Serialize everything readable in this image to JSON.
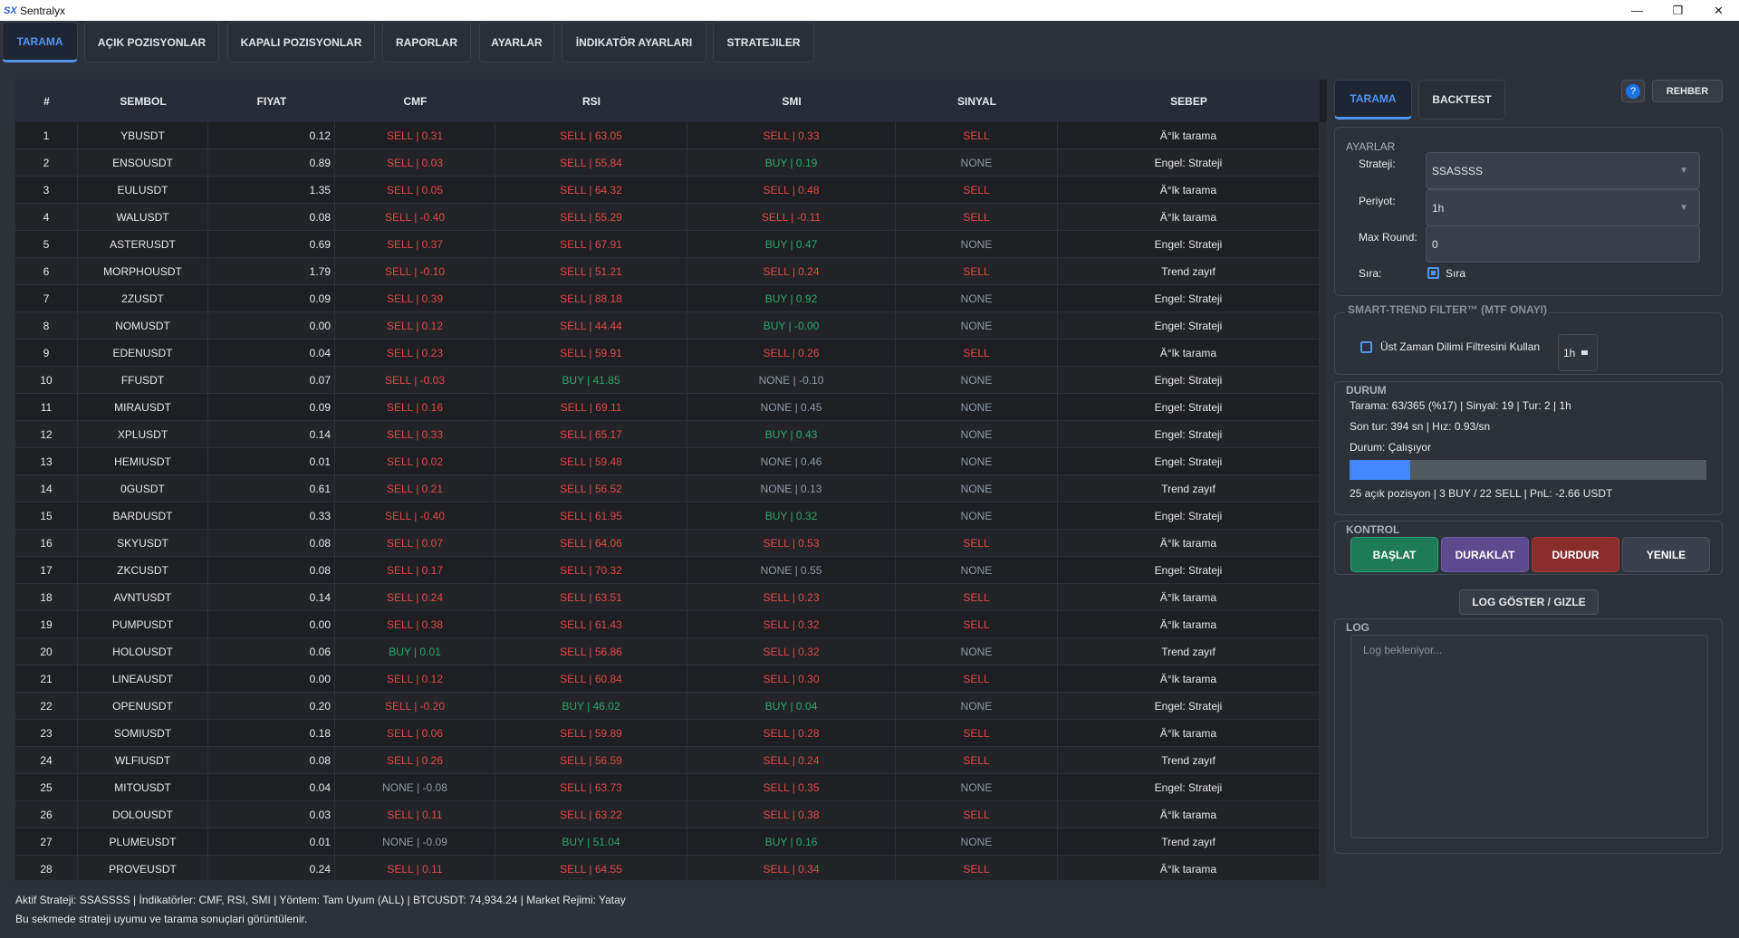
{
  "window": {
    "title": "Sentralyx",
    "logo": "SX",
    "minimize": "—",
    "restore": "❐",
    "close": "✕"
  },
  "tabs": [
    {
      "label": "TARAMA",
      "active": true
    },
    {
      "label": "AÇIK POZISYONLAR"
    },
    {
      "label": "KAPALI POZISYONLAR"
    },
    {
      "label": "RAPORLAR"
    },
    {
      "label": "AYARLAR"
    },
    {
      "label": "İNDIKATÖR AYARLARI"
    },
    {
      "label": "STRATEJILER"
    }
  ],
  "table": {
    "columns": [
      "#",
      "SEMBOL",
      "FIYAT",
      "CMF",
      "RSI",
      "SMI",
      "SINYAL",
      "SEBEP"
    ],
    "rows": [
      [
        "1",
        "YBUSDT",
        "0.12",
        "SELL | 0.31",
        "SELL | 63.05",
        "SELL | 0.33",
        "SELL",
        "Ä°lk tarama"
      ],
      [
        "2",
        "ENSOUSDT",
        "0.89",
        "SELL | 0.03",
        "SELL | 55.84",
        "BUY | 0.19",
        "NONE",
        "Engel: Strateji"
      ],
      [
        "3",
        "EULUSDT",
        "1.35",
        "SELL | 0.05",
        "SELL | 64.32",
        "SELL | 0.48",
        "SELL",
        "Ä°lk tarama"
      ],
      [
        "4",
        "WALUSDT",
        "0.08",
        "SELL | -0.40",
        "SELL | 55.29",
        "SELL | -0.11",
        "SELL",
        "Ä°lk tarama"
      ],
      [
        "5",
        "ASTERUSDT",
        "0.69",
        "SELL | 0.37",
        "SELL | 67.91",
        "BUY | 0.47",
        "NONE",
        "Engel: Strateji"
      ],
      [
        "6",
        "MORPHOUSDT",
        "1.79",
        "SELL | -0.10",
        "SELL | 51.21",
        "SELL | 0.24",
        "SELL",
        "Trend zayıf"
      ],
      [
        "7",
        "2ZUSDT",
        "0.09",
        "SELL | 0.39",
        "SELL | 88.18",
        "BUY | 0.92",
        "NONE",
        "Engel: Strateji"
      ],
      [
        "8",
        "NOMUSDT",
        "0.00",
        "SELL | 0.12",
        "SELL | 44.44",
        "BUY | -0.00",
        "NONE",
        "Engel: Strateji"
      ],
      [
        "9",
        "EDENUSDT",
        "0.04",
        "SELL | 0.23",
        "SELL | 59.91",
        "SELL | 0.26",
        "SELL",
        "Ä°lk tarama"
      ],
      [
        "10",
        "FFUSDT",
        "0.07",
        "SELL | -0.03",
        "BUY | 41.85",
        "NONE | -0.10",
        "NONE",
        "Engel: Strateji"
      ],
      [
        "11",
        "MIRAUSDT",
        "0.09",
        "SELL | 0.16",
        "SELL | 69.11",
        "NONE | 0.45",
        "NONE",
        "Engel: Strateji"
      ],
      [
        "12",
        "XPLUSDT",
        "0.14",
        "SELL | 0.33",
        "SELL | 65.17",
        "BUY | 0.43",
        "NONE",
        "Engel: Strateji"
      ],
      [
        "13",
        "HEMIUSDT",
        "0.01",
        "SELL | 0.02",
        "SELL | 59.48",
        "NONE | 0.46",
        "NONE",
        "Engel: Strateji"
      ],
      [
        "14",
        "0GUSDT",
        "0.61",
        "SELL | 0.21",
        "SELL | 56.52",
        "NONE | 0.13",
        "NONE",
        "Trend zayıf"
      ],
      [
        "15",
        "BARDUSDT",
        "0.33",
        "SELL | -0.40",
        "SELL | 61.95",
        "BUY | 0.32",
        "NONE",
        "Engel: Strateji"
      ],
      [
        "16",
        "SKYUSDT",
        "0.08",
        "SELL | 0.07",
        "SELL | 64.06",
        "SELL | 0.53",
        "SELL",
        "Ä°lk tarama"
      ],
      [
        "17",
        "ZKCUSDT",
        "0.08",
        "SELL | 0.17",
        "SELL | 70.32",
        "NONE | 0.55",
        "NONE",
        "Engel: Strateji"
      ],
      [
        "18",
        "AVNTUSDT",
        "0.14",
        "SELL | 0.24",
        "SELL | 63.51",
        "SELL | 0.23",
        "SELL",
        "Ä°lk tarama"
      ],
      [
        "19",
        "PUMPUSDT",
        "0.00",
        "SELL | 0.38",
        "SELL | 61.43",
        "SELL | 0.32",
        "SELL",
        "Ä°lk tarama"
      ],
      [
        "20",
        "HOLOUSDT",
        "0.06",
        "BUY | 0.01",
        "SELL | 56.86",
        "SELL | 0.32",
        "NONE",
        "Trend zayıf"
      ],
      [
        "21",
        "LINEAUSDT",
        "0.00",
        "SELL | 0.12",
        "SELL | 60.84",
        "SELL | 0.30",
        "SELL",
        "Ä°lk tarama"
      ],
      [
        "22",
        "OPENUSDT",
        "0.20",
        "SELL | -0.20",
        "BUY | 46.02",
        "BUY | 0.04",
        "NONE",
        "Engel: Strateji"
      ],
      [
        "23",
        "SOMIUSDT",
        "0.18",
        "SELL | 0.06",
        "SELL | 59.89",
        "SELL | 0.28",
        "SELL",
        "Ä°lk tarama"
      ],
      [
        "24",
        "WLFIUSDT",
        "0.08",
        "SELL | 0.26",
        "SELL | 56.59",
        "SELL | 0.24",
        "SELL",
        "Trend zayıf"
      ],
      [
        "25",
        "MITOUSDT",
        "0.04",
        "NONE | -0.08",
        "SELL | 63.73",
        "SELL | 0.35",
        "NONE",
        "Engel: Strateji"
      ],
      [
        "26",
        "DOLOUSDT",
        "0.03",
        "SELL | 0.11",
        "SELL | 63.22",
        "SELL | 0.38",
        "SELL",
        "Ä°lk tarama"
      ],
      [
        "27",
        "PLUMEUSDT",
        "0.01",
        "NONE | -0.09",
        "BUY | 51.04",
        "BUY | 0.16",
        "NONE",
        "Trend zayıf"
      ],
      [
        "28",
        "PROVEUSDT",
        "0.24",
        "SELL | 0.11",
        "SELL | 64.55",
        "SELL | 0.34",
        "SELL",
        "Ä°lk tarama"
      ]
    ]
  },
  "footer": {
    "status": "Aktif Strateji: SSASSSS  |  İndikatörler: CMF, RSI, SMI  |  Yöntem: Tam Uyum (ALL)  |  BTCUSDT: 74,934.24  |  Market Rejimi: Yatay",
    "hint": "Bu sekmede strateji uyumu ve tarama sonuçlari görüntülenir."
  },
  "side": {
    "tabs": [
      {
        "label": "TARAMA",
        "active": true
      },
      {
        "label": "BACKTEST"
      }
    ],
    "help": "?",
    "guide": "REHBER",
    "settings": {
      "title": "AYARLAR",
      "strategy_label": "Strateji:",
      "strategy": "SSASSSS",
      "period_label": "Periyot:",
      "period": "1h",
      "max_round_label": "Max Round:",
      "max_round": "0",
      "order_label": "Sıra:",
      "order_check": "Sıra",
      "order_checked": true
    },
    "mtf": {
      "title": "SMART-TREND FILTER™ (MTF ONAYI)",
      "check_label": "Üst Zaman Dilimi Filtresini Kullan",
      "checked": false,
      "tf": "1h"
    },
    "status": {
      "title": "DURUM",
      "line1": "Tarama: 63/365 (%17) | Sinyal: 19 | Tur: 2 | 1h",
      "line2": "Son tur: 394 sn | Hız: 0.93/sn",
      "line3": "Durum: Çalışıyor",
      "progress_percent": 17,
      "line4": "25 açık pozisyon | 3 BUY / 22 SELL | PnL: -2.66 USDT"
    },
    "control": {
      "title": "KONTROL",
      "start": "BAŞLAT",
      "pause": "DURAKLAT",
      "stop": "DURDUR",
      "refresh": "YENILE"
    },
    "log_toggle": "LOG GÖSTER / GIZLE",
    "log": {
      "title": "LOG",
      "placeholder": "Log bekleniyor..."
    }
  },
  "colors": {
    "sell": "#e04848",
    "buy": "#27a86a",
    "none": "#8e9aaa",
    "accent": "#4f95f0",
    "start": "#1f7a58",
    "pause": "#5c4a8f",
    "stop": "#8b2c2c",
    "progress": "#4488ff"
  }
}
